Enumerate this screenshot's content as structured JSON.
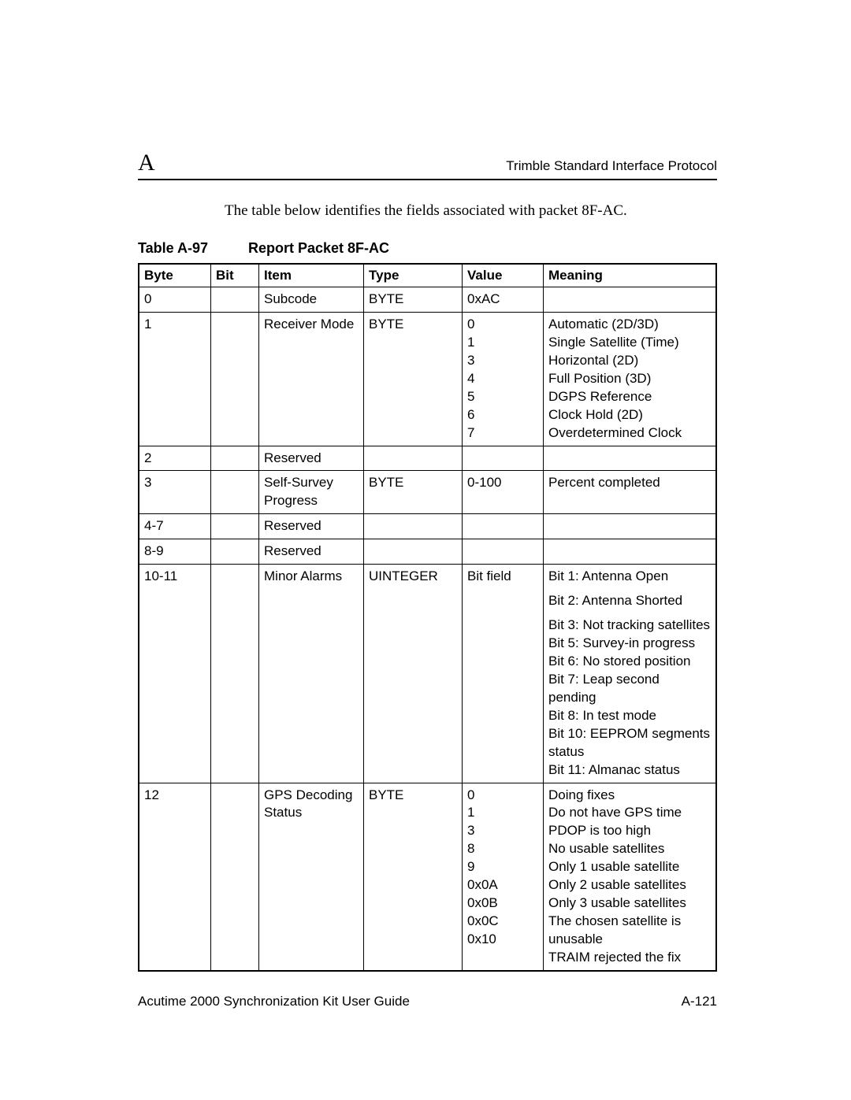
{
  "header": {
    "appendix_letter": "A",
    "title": "Trimble Standard Interface Protocol"
  },
  "intro": "The table below identifies the fields associated with packet 8F-AC.",
  "table": {
    "number": "Table A-97",
    "title": "Report Packet 8F-AC",
    "columns": [
      "Byte",
      "Bit",
      "Item",
      "Type",
      "Value",
      "Meaning"
    ],
    "rows": [
      {
        "byte": "0",
        "bit": "",
        "item": "Subcode",
        "type": "BYTE",
        "value": "0xAC",
        "meaning": ""
      },
      {
        "byte": "1",
        "bit": "",
        "item": "Receiver Mode",
        "type": "BYTE",
        "value": "0\n1\n3\n4\n5\n6\n7",
        "meaning": "Automatic (2D/3D)\nSingle Satellite (Time)\nHorizontal (2D)\nFull Position (3D)\nDGPS Reference\nClock Hold (2D)\nOverdetermined Clock"
      },
      {
        "byte": "2",
        "bit": "",
        "item": "Reserved",
        "type": "",
        "value": "",
        "meaning": ""
      },
      {
        "byte": "3",
        "bit": "",
        "item": "Self-Survey Progress",
        "type": "BYTE",
        "value": "0-100",
        "meaning": "Percent completed"
      },
      {
        "byte": "4-7",
        "bit": "",
        "item": "Reserved",
        "type": "",
        "value": "",
        "meaning": ""
      },
      {
        "byte": "8-9",
        "bit": "",
        "item": "Reserved",
        "type": "",
        "value": "",
        "meaning": ""
      },
      {
        "byte": "10-11",
        "bit": "",
        "item": "Minor Alarms",
        "type": "UINTEGER",
        "value": "Bit field",
        "meaning_blocks": [
          "Bit 1: Antenna Open",
          "Bit 2: Antenna Shorted",
          "Bit 3: Not tracking satellites\nBit 5: Survey-in progress\nBit 6: No stored position\nBit 7: Leap second pending\nBit 8: In test mode\nBit 10: EEPROM segments status\nBit 11: Almanac status"
        ]
      },
      {
        "byte": "12",
        "bit": "",
        "item": "GPS Decoding Status",
        "type": "BYTE",
        "value": "0\n1\n3\n8\n9\n0x0A\n0x0B\n0x0C\n0x10",
        "meaning": "Doing fixes\nDo not have GPS time\nPDOP is too high\nNo usable satellites\nOnly 1 usable satellite\nOnly 2 usable satellites\nOnly 3 usable satellites\nThe chosen satellite is unusable\nTRAIM rejected the fix"
      }
    ]
  },
  "footer": {
    "guide": "Acutime 2000 Synchronization Kit User Guide",
    "page": "A-121"
  }
}
